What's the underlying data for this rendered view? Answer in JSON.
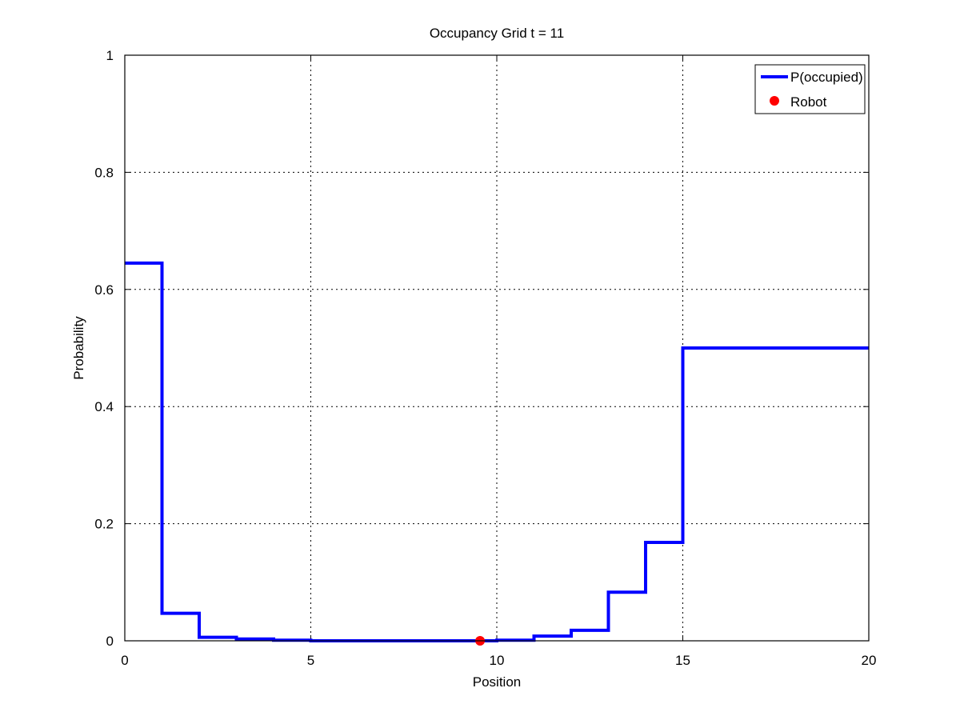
{
  "chart_data": {
    "type": "line",
    "title": "Occupancy Grid t = 11",
    "xlabel": "Position",
    "ylabel": "Probability",
    "xlim": [
      0,
      20
    ],
    "ylim": [
      0,
      1
    ],
    "xticks": [
      0,
      5,
      10,
      15,
      20
    ],
    "xtick_labels": [
      "0",
      "5",
      "10",
      "15",
      "20"
    ],
    "yticks": [
      0,
      0.2,
      0.4,
      0.6,
      0.8,
      1
    ],
    "ytick_labels": [
      "0",
      "0.2",
      "0.4",
      "0.6",
      "0.8",
      "1"
    ],
    "grid": true,
    "legend_position": "top-right",
    "series": [
      {
        "name": "P(occupied)",
        "color": "#0000ff",
        "style": "step",
        "bins": [
          {
            "x_start": 0,
            "x_end": 1,
            "value": 0.645
          },
          {
            "x_start": 1,
            "x_end": 2,
            "value": 0.047
          },
          {
            "x_start": 2,
            "x_end": 3,
            "value": 0.006
          },
          {
            "x_start": 3,
            "x_end": 4,
            "value": 0.003
          },
          {
            "x_start": 4,
            "x_end": 5,
            "value": 0.001
          },
          {
            "x_start": 5,
            "x_end": 6,
            "value": 0.0
          },
          {
            "x_start": 6,
            "x_end": 7,
            "value": 0.0
          },
          {
            "x_start": 7,
            "x_end": 8,
            "value": 0.0
          },
          {
            "x_start": 8,
            "x_end": 9,
            "value": 0.0
          },
          {
            "x_start": 9,
            "x_end": 10,
            "value": 0.0
          },
          {
            "x_start": 10,
            "x_end": 11,
            "value": 0.001
          },
          {
            "x_start": 11,
            "x_end": 12,
            "value": 0.008
          },
          {
            "x_start": 12,
            "x_end": 13,
            "value": 0.018
          },
          {
            "x_start": 13,
            "x_end": 14,
            "value": 0.083
          },
          {
            "x_start": 14,
            "x_end": 15,
            "value": 0.168
          },
          {
            "x_start": 15,
            "x_end": 20,
            "value": 0.5
          }
        ]
      },
      {
        "name": "Robot",
        "color": "#ff0000",
        "style": "marker",
        "points": [
          {
            "x": 9.55,
            "y": 0
          }
        ]
      }
    ]
  }
}
